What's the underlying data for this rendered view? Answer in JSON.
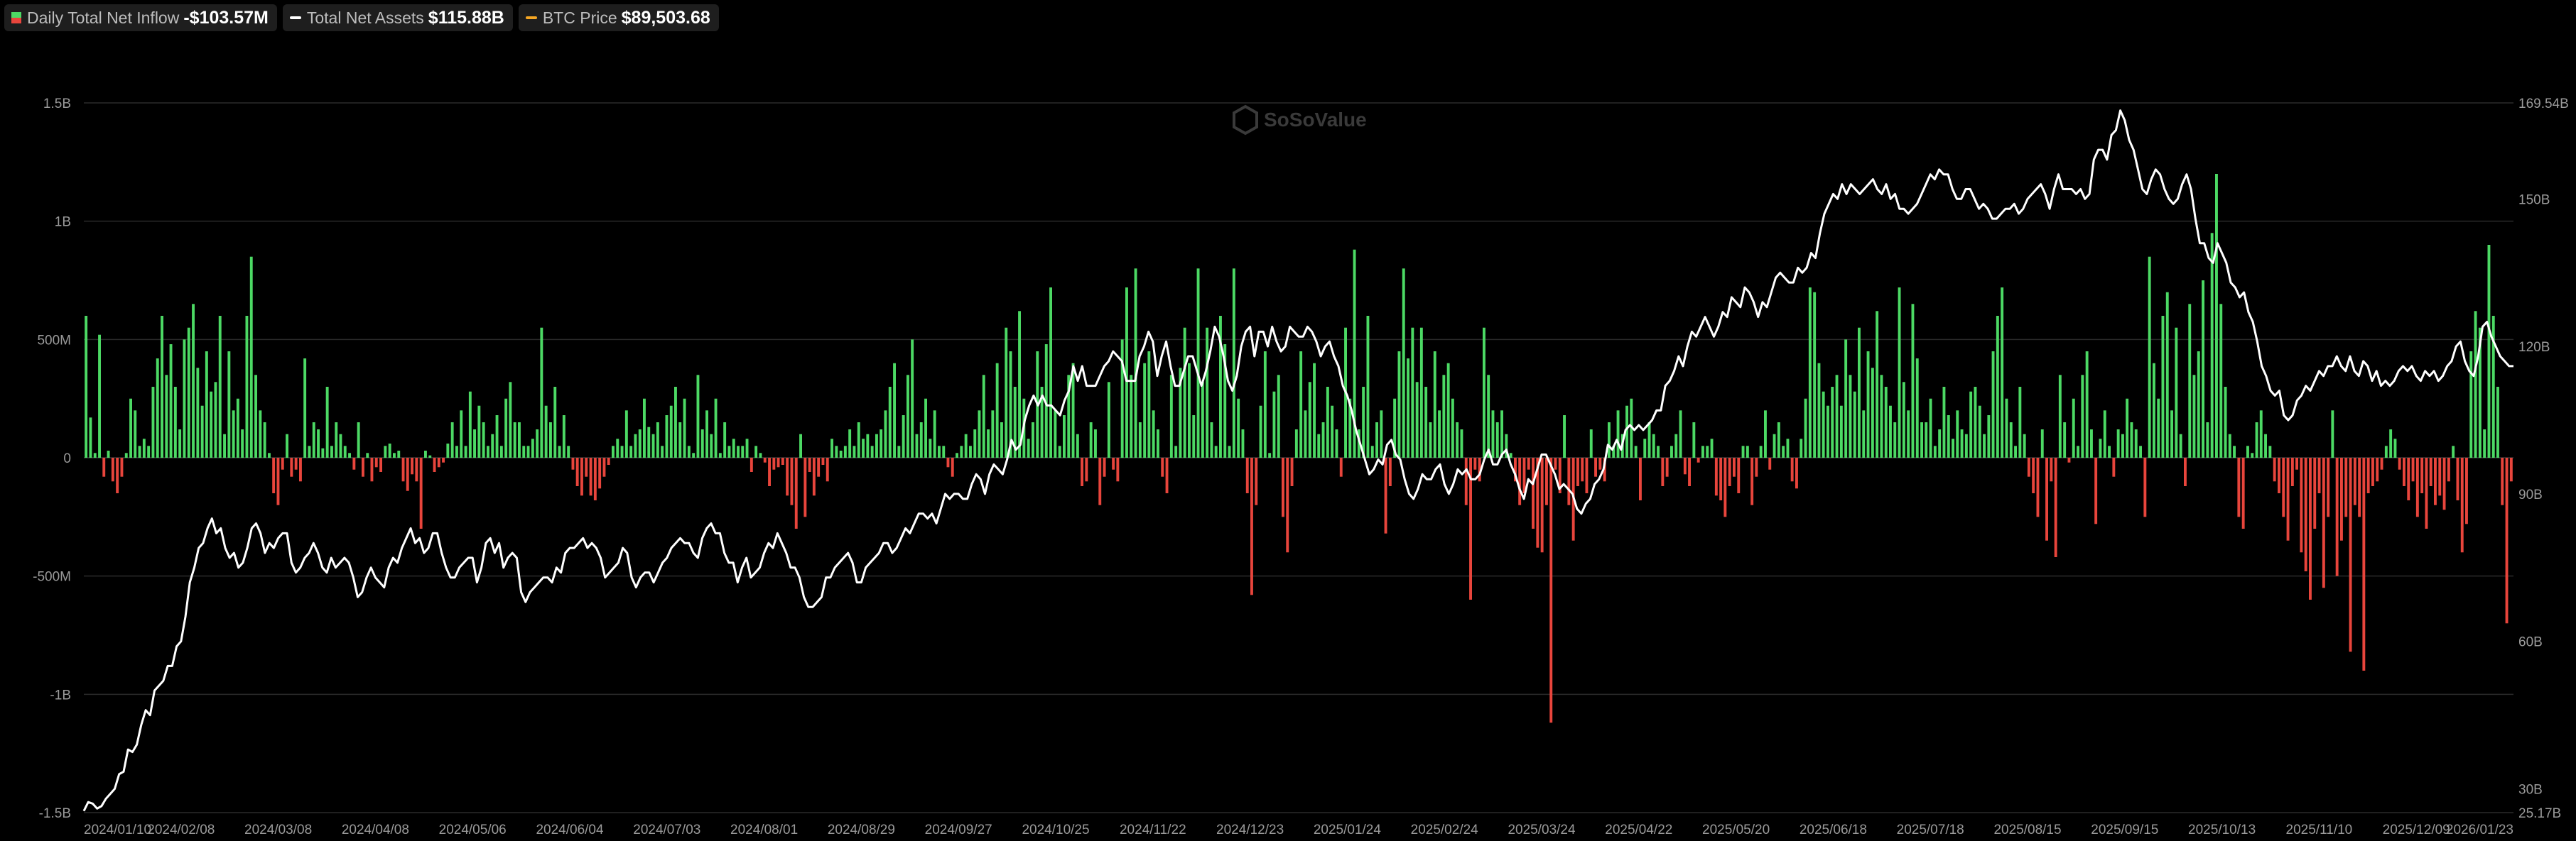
{
  "legend": [
    {
      "label": "Daily Total Net Inflow",
      "value": "-$103.57M",
      "icon": "bar-swatch-icon"
    },
    {
      "label": "Total Net Assets",
      "value": "$115.88B",
      "icon": "line-swatch-icon",
      "color": "#ffffff"
    },
    {
      "label": "BTC Price",
      "value": "$89,503.68",
      "icon": "line-swatch-icon",
      "color": "#f5a623"
    }
  ],
  "watermark": "SoSoValue",
  "chart_data": {
    "type": "bar+line",
    "x_dates": [
      "2024/01/10",
      "2024/02/08",
      "2024/03/08",
      "2024/04/08",
      "2024/05/06",
      "2024/06/04",
      "2024/07/03",
      "2024/08/01",
      "2024/08/29",
      "2024/09/27",
      "2024/10/25",
      "2024/11/22",
      "2024/12/23",
      "2025/01/24",
      "2025/02/24",
      "2025/03/24",
      "2025/04/22",
      "2025/05/20",
      "2025/06/18",
      "2025/07/18",
      "2025/08/15",
      "2025/09/15",
      "2025/10/13",
      "2025/11/10",
      "2025/12/09",
      "2026/01/23"
    ],
    "left_axis": {
      "ticks": [
        "1.5B",
        "1B",
        "500M",
        "0",
        "-500M",
        "-1B",
        "-1.5B"
      ],
      "range": [
        -1.5,
        1.5
      ],
      "unit": "B"
    },
    "right_axis": {
      "ticks": [
        "169.54B",
        "150B",
        "120B",
        "90B",
        "60B",
        "30B",
        "25.17B"
      ],
      "range": [
        25.17,
        169.54
      ],
      "unit": "B"
    },
    "grid": true,
    "colors": {
      "inflow": "#4cd964",
      "outflow": "#e8453c",
      "assets": "#ffffff",
      "btc": "#f5a623",
      "grid": "#2a2a2a"
    },
    "inflow_B": [
      0.6,
      0.17,
      0.02,
      0.52,
      -0.08,
      0.03,
      -0.1,
      -0.15,
      -0.08,
      0.02,
      0.25,
      0.2,
      0.05,
      0.08,
      0.05,
      0.3,
      0.42,
      0.6,
      0.35,
      0.48,
      0.3,
      0.12,
      0.5,
      0.55,
      0.65,
      0.38,
      0.22,
      0.45,
      0.28,
      0.32,
      0.6,
      0.1,
      0.45,
      0.2,
      0.25,
      0.12,
      0.6,
      0.85,
      0.35,
      0.2,
      0.15,
      0.02,
      -0.15,
      -0.2,
      -0.05,
      0.1,
      -0.08,
      -0.05,
      -0.1,
      0.42,
      0.05,
      0.15,
      0.12,
      0.04,
      0.3,
      0.05,
      0.15,
      0.1,
      0.05,
      0.02,
      -0.05,
      0.15,
      -0.08,
      0.02,
      -0.1,
      -0.04,
      -0.06,
      0.05,
      0.06,
      0.02,
      0.03,
      -0.1,
      -0.14,
      -0.07,
      -0.1,
      -0.3,
      0.03,
      0.01,
      -0.06,
      -0.04,
      -0.02,
      0.06,
      0.15,
      0.05,
      0.2,
      0.05,
      0.28,
      0.12,
      0.22,
      0.15,
      0.05,
      0.1,
      0.18,
      0.05,
      0.25,
      0.32,
      0.15,
      0.15,
      0.05,
      0.05,
      0.08,
      0.12,
      0.55,
      0.22,
      0.15,
      0.3,
      0.05,
      0.18,
      0.05,
      -0.05,
      -0.12,
      -0.16,
      -0.08,
      -0.16,
      -0.18,
      -0.13,
      -0.08,
      -0.03,
      0.05,
      0.08,
      0.05,
      0.2,
      0.05,
      0.1,
      0.12,
      0.25,
      0.13,
      0.1,
      0.15,
      0.05,
      0.18,
      0.22,
      0.3,
      0.15,
      0.25,
      0.05,
      0.02,
      0.35,
      0.12,
      0.2,
      0.1,
      0.25,
      0.02,
      0.15,
      0.05,
      0.08,
      0.05,
      0.05,
      0.08,
      -0.06,
      0.05,
      0.02,
      -0.02,
      -0.12,
      -0.05,
      -0.04,
      -0.03,
      -0.16,
      -0.2,
      -0.3,
      0.1,
      -0.25,
      -0.06,
      -0.16,
      -0.08,
      -0.03,
      -0.1,
      0.08,
      0.05,
      0.03,
      0.05,
      0.12,
      0.05,
      0.15,
      0.08,
      0.1,
      0.05,
      0.1,
      0.12,
      0.2,
      0.3,
      0.4,
      0.05,
      0.18,
      0.35,
      0.5,
      0.1,
      0.15,
      0.25,
      0.08,
      0.2,
      0.05,
      0.05,
      -0.04,
      -0.08,
      0.02,
      0.05,
      0.1,
      0.05,
      0.12,
      0.2,
      0.35,
      0.12,
      0.2,
      0.4,
      0.15,
      0.55,
      0.45,
      0.3,
      0.62,
      0.25,
      0.08,
      0.15,
      0.45,
      0.3,
      0.48,
      0.72,
      0.2,
      0.05,
      0.18,
      0.35,
      0.4,
      0.1,
      -0.12,
      -0.1,
      0.15,
      0.12,
      -0.2,
      -0.08,
      0.32,
      -0.05,
      -0.1,
      0.5,
      0.72,
      0.35,
      0.8,
      0.15,
      0.4,
      0.45,
      0.2,
      0.12,
      -0.08,
      -0.15,
      0.35,
      0.05,
      0.38,
      0.55,
      0.4,
      0.18,
      0.8,
      0.32,
      0.55,
      0.15,
      0.05,
      0.6,
      0.48,
      0.05,
      0.8,
      0.25,
      0.12,
      -0.15,
      -0.58,
      -0.2,
      0.22,
      0.45,
      0.02,
      0.28,
      0.35,
      -0.25,
      -0.4,
      -0.12,
      0.12,
      0.45,
      0.2,
      0.32,
      0.4,
      0.1,
      0.15,
      0.3,
      0.22,
      0.12,
      -0.08,
      0.55,
      0.25,
      0.88,
      0.12,
      0.3,
      0.6,
      0.05,
      0.15,
      0.2,
      -0.32,
      -0.12,
      0.25,
      0.45,
      0.8,
      0.42,
      0.55,
      0.32,
      0.55,
      0.3,
      0.15,
      0.45,
      0.2,
      0.35,
      0.4,
      0.25,
      0.15,
      0.12,
      -0.2,
      -0.6,
      -0.05,
      -0.1,
      0.55,
      0.35,
      0.2,
      0.15,
      0.2,
      0.1,
      0.02,
      -0.1,
      -0.2,
      -0.15,
      -0.05,
      -0.3,
      -0.38,
      -0.4,
      -0.2,
      -1.12,
      -0.05,
      -0.15,
      0.18,
      -0.2,
      -0.35,
      -0.12,
      -0.1,
      -0.15,
      0.12,
      -0.08,
      -0.05,
      -0.1,
      0.15,
      0.05,
      0.2,
      0.1,
      0.22,
      0.25,
      0.05,
      -0.18,
      0.08,
      0.15,
      0.1,
      0.05,
      -0.12,
      -0.08,
      0.05,
      0.1,
      0.2,
      -0.07,
      -0.12,
      0.15,
      -0.02,
      0.05,
      0.05,
      0.08,
      -0.16,
      -0.18,
      -0.25,
      -0.12,
      -0.08,
      -0.15,
      0.05,
      0.05,
      -0.2,
      -0.08,
      0.05,
      0.2,
      -0.05,
      0.1,
      0.15,
      0.05,
      0.08,
      -0.1,
      -0.13,
      0.08,
      0.25,
      0.72,
      0.7,
      0.4,
      0.28,
      0.22,
      0.3,
      0.35,
      0.22,
      0.5,
      0.35,
      0.28,
      0.55,
      0.2,
      0.45,
      0.38,
      0.62,
      0.35,
      0.3,
      0.22,
      0.15,
      0.72,
      0.32,
      0.2,
      0.65,
      0.42,
      0.15,
      0.15,
      0.25,
      0.05,
      0.12,
      0.3,
      0.18,
      0.08,
      0.2,
      0.12,
      0.1,
      0.28,
      0.3,
      0.22,
      0.1,
      0.18,
      0.45,
      0.6,
      0.72,
      0.25,
      0.15,
      0.05,
      0.3,
      0.1,
      -0.08,
      -0.15,
      -0.25,
      0.12,
      -0.35,
      -0.1,
      -0.42,
      0.35,
      0.15,
      -0.02,
      0.25,
      0.05,
      0.35,
      0.45,
      0.12,
      -0.28,
      0.08,
      0.2,
      0.05,
      -0.08,
      0.12,
      0.1,
      0.25,
      0.15,
      0.12,
      0.05,
      -0.25,
      0.85,
      0.4,
      0.25,
      0.6,
      0.7,
      0.2,
      0.55,
      0.1,
      -0.12,
      0.65,
      0.35,
      0.45,
      0.75,
      0.15,
      0.95,
      1.2,
      0.65,
      0.3,
      0.1,
      0.05,
      -0.25,
      -0.3,
      0.05,
      0.02,
      0.15,
      0.2,
      0.1,
      0.05,
      -0.1,
      -0.15,
      -0.25,
      -0.35,
      -0.12,
      -0.05,
      -0.4,
      -0.48,
      -0.6,
      -0.3,
      -0.15,
      -0.55,
      -0.25,
      0.2,
      -0.5,
      -0.35,
      -0.25,
      -0.82,
      -0.2,
      -0.25,
      -0.9,
      -0.15,
      -0.12,
      -0.1,
      -0.05,
      0.05,
      0.12,
      0.08,
      -0.05,
      -0.12,
      -0.18,
      -0.1,
      -0.25,
      -0.15,
      -0.3,
      -0.12,
      -0.2,
      -0.16,
      -0.22,
      -0.1,
      0.05,
      -0.18,
      -0.4,
      -0.28,
      0.45,
      0.62,
      0.55,
      0.12,
      0.9,
      0.6,
      0.3,
      -0.2,
      -0.7,
      -0.1
    ],
    "assets_B": [
      25.5,
      27.3,
      27,
      26,
      26.5,
      28,
      29,
      30,
      33,
      33.5,
      38,
      37.5,
      39,
      43,
      46,
      45,
      50,
      51,
      52,
      55,
      55,
      59,
      60,
      65,
      72,
      75,
      79,
      80,
      83,
      85,
      82,
      83,
      79,
      77,
      78,
      75,
      76,
      79,
      83,
      84,
      82,
      78,
      80,
      79,
      81,
      82,
      82,
      76,
      74,
      75,
      77,
      78,
      80,
      78,
      75,
      74,
      77,
      75,
      76,
      77,
      76,
      73,
      69,
      70,
      73,
      75,
      73,
      72,
      71,
      75,
      77,
      76,
      79,
      81,
      83,
      80,
      81,
      78,
      79,
      82,
      82,
      78,
      75,
      73,
      73,
      75,
      76,
      77,
      77,
      72,
      75,
      80,
      81,
      78,
      80,
      75,
      77,
      78,
      77,
      70,
      68,
      70,
      71,
      72,
      73,
      73,
      72,
      75,
      74,
      78,
      79,
      79,
      80,
      81,
      79,
      80,
      79,
      77,
      73,
      74,
      75,
      76,
      79,
      78,
      73,
      71,
      73,
      74,
      74,
      72,
      74,
      76,
      77,
      79,
      80,
      81,
      80,
      80,
      78,
      77,
      81,
      83,
      84,
      82,
      82,
      78,
      76,
      76,
      72,
      75,
      77,
      73,
      74,
      75,
      78,
      80,
      79,
      82,
      80,
      78,
      75,
      75,
      73,
      69,
      67,
      67,
      68,
      69,
      73,
      73,
      75,
      76,
      77,
      78,
      76,
      72,
      72,
      75,
      76,
      77,
      78,
      80,
      80,
      78,
      79,
      81,
      83,
      82,
      84,
      86,
      86,
      85,
      86,
      84,
      87,
      90,
      89,
      90,
      90,
      89,
      89,
      92,
      94,
      93,
      90,
      94,
      96,
      95,
      94,
      97,
      101,
      99,
      100,
      105,
      108,
      110,
      108,
      110,
      108,
      108,
      107,
      106,
      109,
      111,
      116,
      113,
      116,
      112,
      112,
      112,
      114,
      116,
      117,
      119,
      118,
      117,
      113,
      113,
      113,
      118,
      120,
      123,
      121,
      114,
      118,
      121,
      116,
      112,
      112,
      115,
      118,
      118,
      115,
      112,
      115,
      119,
      124,
      122,
      118,
      113,
      111,
      114,
      120,
      123,
      124,
      118,
      123,
      123,
      120,
      124,
      121,
      119,
      120,
      124,
      123,
      122,
      122,
      124,
      123,
      121,
      118,
      120,
      121,
      118,
      116,
      112,
      110,
      107,
      103,
      100,
      97,
      94,
      95,
      97,
      96,
      100,
      101,
      98,
      97,
      93,
      90,
      89,
      91,
      94,
      93,
      93,
      95,
      96,
      92,
      90,
      92,
      95,
      94,
      95,
      93,
      93,
      94,
      97,
      99,
      96,
      96,
      98,
      99,
      96,
      94,
      91,
      89,
      93,
      92,
      95,
      98,
      98,
      96,
      94,
      91,
      92,
      91,
      90,
      87,
      86,
      88,
      89,
      92,
      93,
      95,
      100,
      99,
      101,
      99,
      103,
      104,
      103,
      104,
      103,
      104,
      105,
      107,
      107,
      112,
      113,
      115,
      118,
      116,
      120,
      123,
      122,
      124,
      126,
      124,
      122,
      124,
      127,
      126,
      130,
      129,
      128,
      132,
      131,
      129,
      126,
      129,
      128,
      131,
      134,
      135,
      134,
      133,
      133,
      136,
      135,
      136,
      139,
      138,
      143,
      147,
      149,
      151,
      150,
      153,
      151,
      153,
      152,
      151,
      152,
      153,
      154,
      152,
      151,
      153,
      150,
      151,
      148,
      148,
      147,
      148,
      149,
      151,
      153,
      155,
      154,
      156,
      155,
      155,
      152,
      150,
      150,
      152,
      152,
      150,
      148,
      149,
      148,
      146,
      146,
      147,
      148,
      148,
      149,
      147,
      148,
      150,
      151,
      152,
      153,
      151,
      148,
      152,
      155,
      152,
      152,
      152,
      151,
      152,
      150,
      151,
      158,
      160,
      160,
      158,
      163,
      164,
      168,
      166,
      162,
      160,
      156,
      152,
      151,
      154,
      156,
      155,
      152,
      150,
      149,
      150,
      153,
      155,
      152,
      146,
      141,
      141,
      138,
      137,
      141,
      139,
      137,
      133,
      132,
      130,
      131,
      127,
      125,
      121,
      116,
      114,
      111,
      110,
      111,
      106,
      105,
      106,
      109,
      110,
      112,
      111,
      113,
      115,
      114,
      116,
      116,
      118,
      116,
      115,
      118,
      115,
      114,
      117,
      116,
      113,
      115,
      112,
      113,
      112,
      113,
      115,
      116,
      115,
      116,
      114,
      113,
      115,
      114,
      115,
      113,
      114,
      116,
      117,
      120,
      121,
      117,
      115,
      114,
      118,
      124,
      125,
      122,
      120,
      118,
      117,
      116,
      116
    ]
  }
}
